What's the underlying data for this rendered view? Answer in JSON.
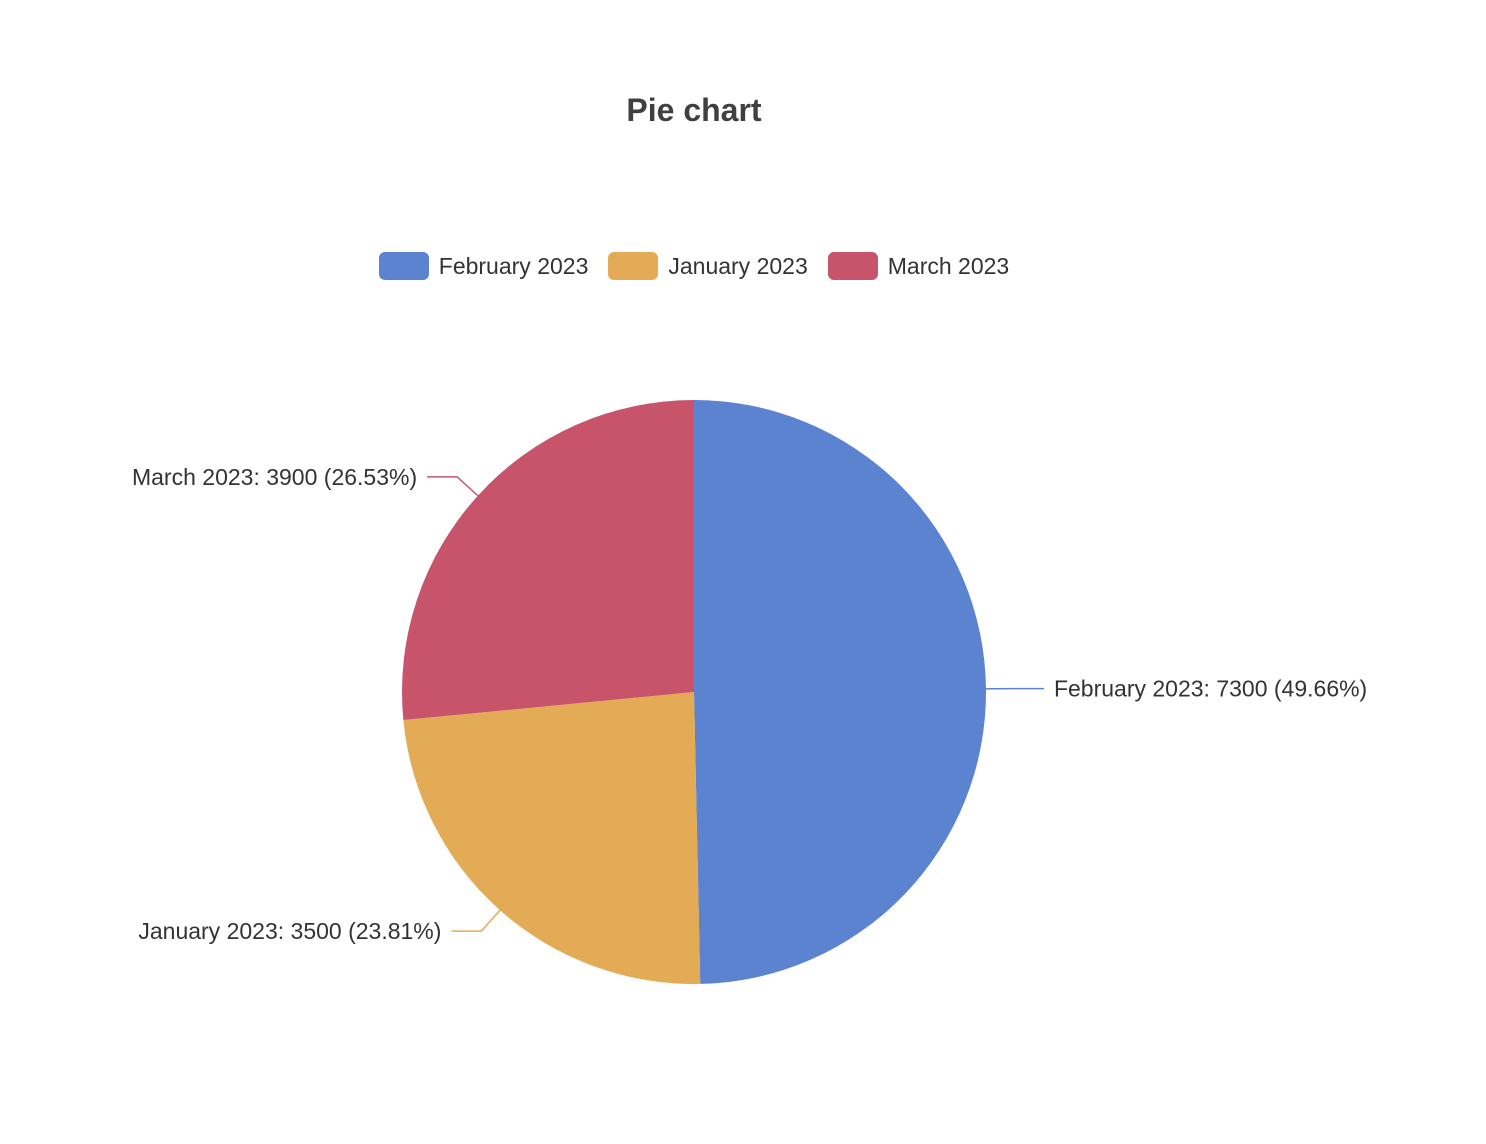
{
  "chart_data": {
    "type": "pie",
    "title": "Pie chart",
    "legend_position": "top",
    "slices": [
      {
        "label": "February 2023",
        "value": 7300,
        "percent": "49.66%",
        "text": "February 2023: 7300 (49.66%)",
        "color": "#5b83d0"
      },
      {
        "label": "January 2023",
        "value": 3500,
        "percent": "23.81%",
        "text": "January 2023: 3500 (23.81%)",
        "color": "#e3ab55"
      },
      {
        "label": "March 2023",
        "value": 3900,
        "percent": "26.53%",
        "text": "March 2023: 3900 (26.53%)",
        "color": "#c8546b"
      }
    ]
  }
}
